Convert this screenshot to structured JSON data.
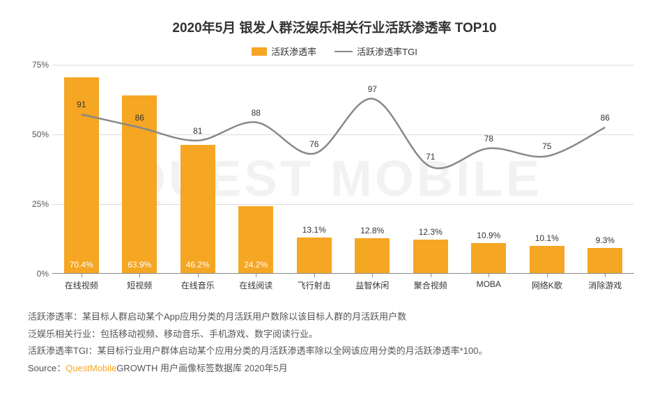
{
  "watermark": "QUEST MOBILE",
  "title": {
    "text": "2020年5月 银发人群泛娱乐相关行业活跃渗透率 TOP10",
    "fontsize": 19
  },
  "legend": {
    "bar": {
      "label": "活跃渗透率",
      "color": "#f5a623"
    },
    "line": {
      "label": "活跃渗透率TGI",
      "color": "#888888"
    }
  },
  "chart": {
    "type": "bar+line",
    "categories": [
      "在线视频",
      "短视频",
      "在线音乐",
      "在线阅读",
      "飞行射击",
      "益智休闲",
      "聚合视频",
      "MOBA",
      "网络K歌",
      "消除游戏"
    ],
    "bar_values": [
      70.4,
      63.9,
      46.2,
      24.2,
      13.1,
      12.8,
      12.3,
      10.9,
      10.1,
      9.3
    ],
    "bar_value_suffix": "%",
    "bar_color": "#f5a623",
    "tgi_values": [
      91,
      86,
      81,
      88,
      76,
      97,
      71,
      78,
      75,
      86
    ],
    "line_color": "#888888",
    "line_width": 2.5,
    "y": {
      "min": 0,
      "max": 75,
      "ticks": [
        0,
        25,
        50,
        75
      ],
      "suffix": "%"
    },
    "tgi_scale": {
      "min": 30,
      "max": 110
    },
    "grid_color": "#dddddd",
    "label_fontsize": 12,
    "label_outside_threshold": 15,
    "background": "#ffffff"
  },
  "footnotes": {
    "lines": [
      "活跃渗透率：某目标人群启动某个App应用分类的月活跃用户数除以该目标人群的月活跃用户数",
      "泛娱乐相关行业：包括移动视频、移动音乐、手机游戏、数字阅读行业。",
      "活跃渗透率TGI：某目标行业用户群体启动某个应用分类的月活跃渗透率除以全网该应用分类的月活跃渗透率*100。"
    ],
    "source_prefix": "Source：",
    "source_brand": "QuestMobile",
    "source_rest": "GROWTH 用户画像标签数据库 2020年5月"
  }
}
